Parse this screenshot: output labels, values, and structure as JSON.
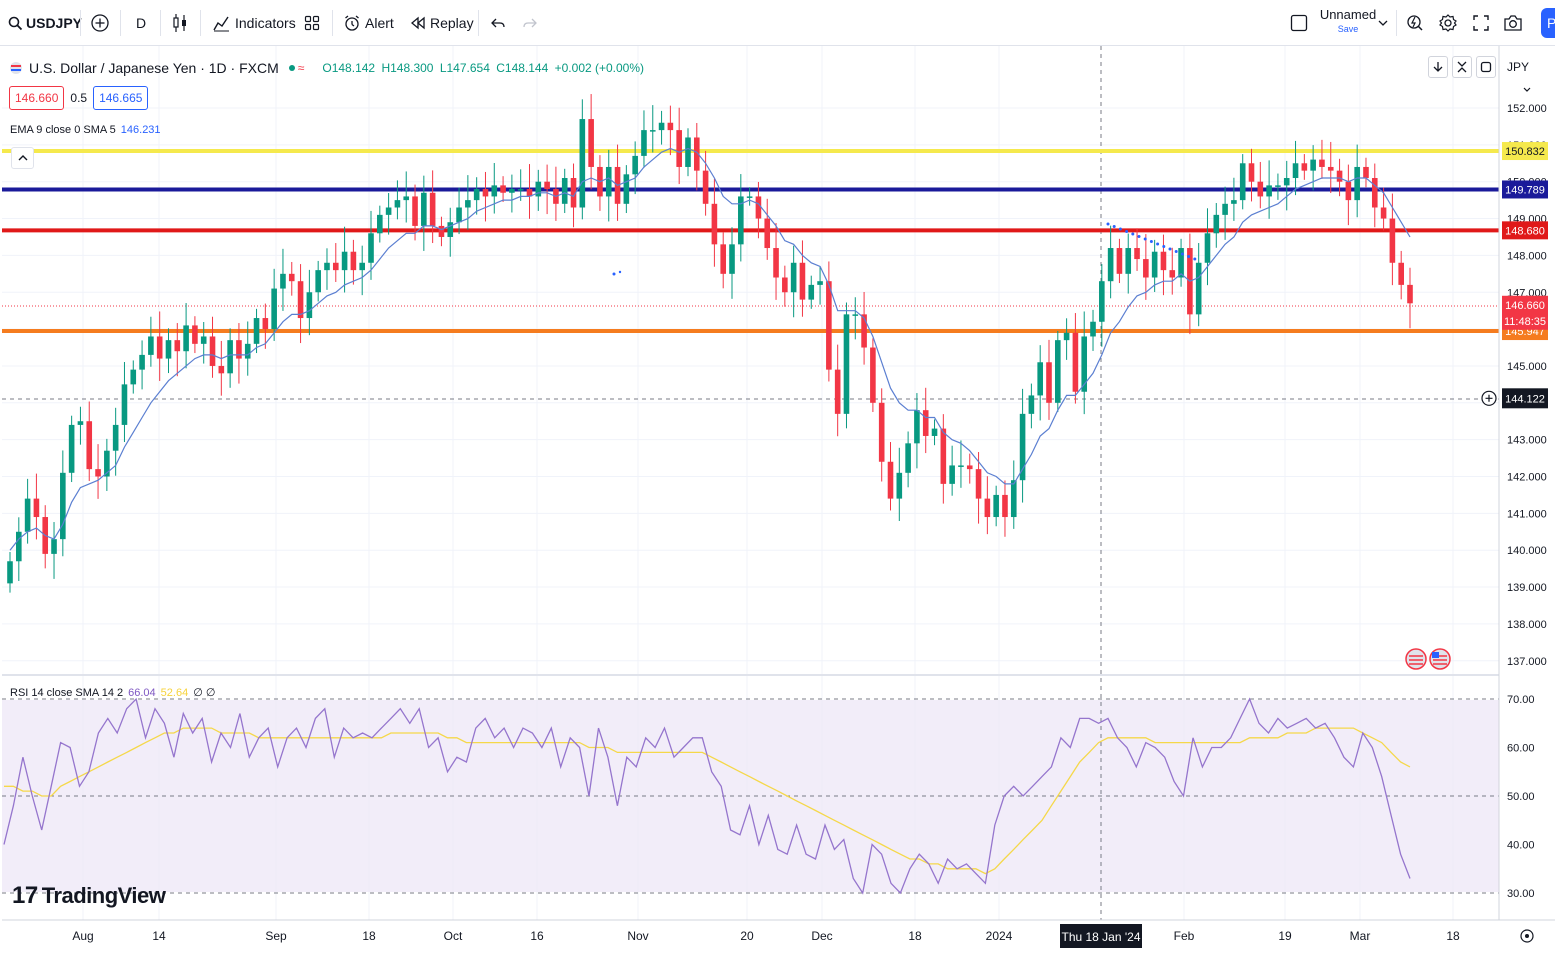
{
  "toolbar": {
    "symbol": "USDJPY",
    "interval": "D",
    "indicators_label": "Indicators",
    "alert_label": "Alert",
    "replay_label": "Replay",
    "layout_name": "Unnamed",
    "save_label": "Save",
    "publish_label": "Pu"
  },
  "legend": {
    "title": "U.S. Dollar / Japanese Yen · 1D · FXCM",
    "open": "O148.142",
    "high": "H148.300",
    "low": "L147.654",
    "close": "C148.144",
    "change": "+0.002 (+0.00%)",
    "bid": "146.660",
    "spread": "0.5",
    "ask": "146.665"
  },
  "ema_legend": {
    "label": "EMA 9 close 0 SMA 5",
    "value": "146.231"
  },
  "rsi_legend": {
    "label": "RSI 14 close SMA 14 2",
    "value": "66.04",
    "sma_value": "52.64",
    "extra": "∅ ∅"
  },
  "currency": "JPY",
  "brand": "TradingView",
  "colors": {
    "up": "#089981",
    "down": "#f23645",
    "ema": "#5b7fd1",
    "rsi": "#9575cd",
    "rsi_sma": "#f5d84a",
    "yellow_line": "#f5e94d",
    "blue_line": "#1a1a9a",
    "red_line": "#e01919",
    "orange_line": "#f57c1f"
  },
  "chart_data": {
    "type": "candlestick",
    "symbol": "USDJPY",
    "y_axis_ticks": [
      "152.000",
      "151.000",
      "150.000",
      "149.000",
      "148.000",
      "147.000",
      "146.000",
      "145.000",
      "144.000",
      "143.000",
      "142.000",
      "141.000",
      "140.000",
      "139.000",
      "138.000",
      "137.000"
    ],
    "x_axis_labels": [
      "Aug",
      "14",
      "Sep",
      "18",
      "Oct",
      "16",
      "Nov",
      "20",
      "Dec",
      "18",
      "2024",
      "Feb",
      "19",
      "Mar",
      "18"
    ],
    "crosshair_date": "Thu 18 Jan '24",
    "crosshair_price": "144.122",
    "last_price": "146.660",
    "countdown": "11:48:35",
    "horizontal_levels": [
      {
        "name": "yellow",
        "value": 150.832,
        "label": "150.832",
        "color": "#f5e94d"
      },
      {
        "name": "blue",
        "value": 149.789,
        "label": "149.789",
        "color": "#1a1a9a"
      },
      {
        "name": "red",
        "value": 148.68,
        "label": "148.680",
        "color": "#e01919"
      },
      {
        "name": "orange",
        "value": 145.947,
        "label": "145.947",
        "color": "#f57c1f"
      }
    ],
    "close_series": [
      139.7,
      140.5,
      141.4,
      140.9,
      139.9,
      140.3,
      142.1,
      143.4,
      143.5,
      142.2,
      142.0,
      142.7,
      143.4,
      144.5,
      144.9,
      145.3,
      145.8,
      145.2,
      145.7,
      145.4,
      146.1,
      145.6,
      145.8,
      145.0,
      144.8,
      145.7,
      145.2,
      145.6,
      146.3,
      146.0,
      147.1,
      147.5,
      147.3,
      146.3,
      147.0,
      147.6,
      147.8,
      147.6,
      148.1,
      147.6,
      147.8,
      148.6,
      149.1,
      149.3,
      149.5,
      149.6,
      148.8,
      149.7,
      148.8,
      148.5,
      148.9,
      149.3,
      149.5,
      149.8,
      149.6,
      149.9,
      149.7,
      149.8,
      149.8,
      149.6,
      150.0,
      149.8,
      149.4,
      150.1,
      149.3,
      151.7,
      150.4,
      149.6,
      150.4,
      149.4,
      150.2,
      150.7,
      151.4,
      151.4,
      151.6,
      151.4,
      150.4,
      151.2,
      150.3,
      149.4,
      148.3,
      147.5,
      148.3,
      149.6,
      149.6,
      149.0,
      148.2,
      147.4,
      147.0,
      147.8,
      146.8,
      147.2,
      147.3,
      144.9,
      143.7,
      146.4,
      146.4,
      145.5,
      144.0,
      142.4,
      141.4,
      142.1,
      142.9,
      143.8,
      143.1,
      143.3,
      141.8,
      142.3,
      142.3,
      142.2,
      141.4,
      140.9,
      141.5,
      140.9,
      141.9,
      143.7,
      144.2,
      145.1,
      144.0,
      145.7,
      145.9,
      144.3,
      145.8,
      146.2,
      147.3,
      148.2,
      147.5,
      148.2,
      147.9,
      147.4,
      148.1,
      147.6,
      147.4,
      148.2,
      146.4,
      147.8,
      148.6,
      149.1,
      149.4,
      149.5,
      150.5,
      150.0,
      149.6,
      149.9,
      149.9,
      150.1,
      150.5,
      150.3,
      150.6,
      150.4,
      150.3,
      150.0,
      149.5,
      150.4,
      150.1,
      149.3,
      149.0,
      147.8,
      147.2,
      146.7
    ],
    "ema_series": [
      140.0,
      140.3,
      140.5,
      140.6,
      140.4,
      140.3,
      140.7,
      141.3,
      141.7,
      141.8,
      141.9,
      142.1,
      142.3,
      142.8,
      143.2,
      143.6,
      144.0,
      144.3,
      144.6,
      144.8,
      145.0,
      145.2,
      145.3,
      145.3,
      145.2,
      145.3,
      145.3,
      145.3,
      145.5,
      145.6,
      145.9,
      146.2,
      146.4,
      146.4,
      146.5,
      146.7,
      146.9,
      147.0,
      147.2,
      147.3,
      147.4,
      147.6,
      147.9,
      148.2,
      148.4,
      148.6,
      148.6,
      148.8,
      148.8,
      148.7,
      148.8,
      148.9,
      149.0,
      149.2,
      149.3,
      149.4,
      149.5,
      149.5,
      149.6,
      149.6,
      149.7,
      149.7,
      149.6,
      149.7,
      149.6,
      150.0,
      150.1,
      150.0,
      150.1,
      149.9,
      150.0,
      150.1,
      150.4,
      150.6,
      150.8,
      150.9,
      150.8,
      150.9,
      150.8,
      150.5,
      150.1,
      149.6,
      149.4,
      149.4,
      149.5,
      149.4,
      149.1,
      148.8,
      148.4,
      148.3,
      148.0,
      147.8,
      147.7,
      147.2,
      146.5,
      146.5,
      146.5,
      146.3,
      145.8,
      145.1,
      144.4,
      144.0,
      143.8,
      143.8,
      143.6,
      143.6,
      143.2,
      143.0,
      142.9,
      142.7,
      142.4,
      142.1,
      142.0,
      141.8,
      141.8,
      142.2,
      142.6,
      143.1,
      143.3,
      143.8,
      144.2,
      144.2,
      144.5,
      144.8,
      145.3,
      145.9,
      146.2,
      146.6,
      146.9,
      147.0,
      147.2,
      147.3,
      147.3,
      147.5,
      147.3,
      147.4,
      147.7,
      148.0,
      148.3,
      148.5,
      148.9,
      149.1,
      149.2,
      149.3,
      149.4,
      149.6,
      149.8,
      149.9,
      150.0,
      150.1,
      150.1,
      150.1,
      150.0,
      150.1,
      150.1,
      149.9,
      149.7,
      149.3,
      148.9,
      148.5
    ],
    "rsi": {
      "levels": [
        "70.00",
        "60.00",
        "50.00",
        "40.00",
        "30.00"
      ],
      "series": [
        40,
        48,
        58,
        50,
        43,
        52,
        61,
        60,
        52,
        55,
        63,
        66,
        63,
        68,
        70,
        62,
        68,
        65,
        58,
        67,
        63,
        66,
        57,
        63,
        60,
        67,
        58,
        62,
        64,
        56,
        62,
        64,
        60,
        66,
        68,
        58,
        64,
        62,
        63,
        62,
        64,
        66,
        68,
        65,
        68,
        60,
        62,
        55,
        58,
        57,
        64,
        66,
        62,
        64,
        60,
        64,
        63,
        60,
        64,
        56,
        62,
        60,
        50,
        64,
        58,
        48,
        58,
        56,
        62,
        60,
        64,
        58,
        60,
        62,
        62,
        55,
        52,
        43,
        42,
        48,
        40,
        46,
        39,
        38,
        44,
        38,
        37,
        44,
        39,
        41,
        33,
        30,
        40,
        38,
        32,
        30,
        35,
        38,
        36,
        32,
        37,
        35,
        36,
        34,
        32,
        44,
        50,
        52,
        50,
        52,
        54,
        56,
        62,
        60,
        66,
        66,
        65,
        66,
        62,
        60,
        56,
        61,
        60,
        58,
        53,
        50,
        62,
        56,
        60,
        60,
        62,
        66,
        70,
        65,
        63,
        66,
        64,
        65,
        66,
        64,
        65,
        62,
        58,
        56,
        63,
        60,
        54,
        46,
        38,
        33
      ],
      "sma_series": [
        52,
        52,
        51,
        51,
        50,
        50,
        52,
        53,
        54,
        55,
        56,
        57,
        58,
        59,
        60,
        61,
        62,
        63,
        63,
        64,
        64,
        64,
        64,
        63,
        63,
        63,
        63,
        62,
        62,
        62,
        62,
        62,
        62,
        62,
        62,
        62,
        62,
        62,
        62,
        62,
        62,
        63,
        63,
        63,
        63,
        63,
        63,
        62,
        62,
        61,
        61,
        61,
        61,
        61,
        61,
        61,
        61,
        61,
        61,
        61,
        61,
        61,
        60,
        60,
        60,
        59,
        59,
        59,
        59,
        59,
        59,
        59,
        59,
        59,
        59,
        58,
        57,
        56,
        55,
        54,
        53,
        52,
        51,
        50,
        49,
        48,
        47,
        46,
        45,
        44,
        43,
        42,
        41,
        40,
        39,
        38,
        37,
        37,
        36,
        36,
        35,
        35,
        35,
        35,
        34,
        35,
        37,
        39,
        41,
        43,
        45,
        48,
        51,
        54,
        57,
        59,
        61,
        62,
        62,
        62,
        62,
        62,
        61,
        61,
        61,
        61,
        61,
        61,
        61,
        61,
        61,
        61,
        62,
        62,
        62,
        62,
        63,
        63,
        63,
        64,
        64,
        64,
        64,
        64,
        63,
        62,
        61,
        59,
        57,
        56
      ]
    }
  }
}
